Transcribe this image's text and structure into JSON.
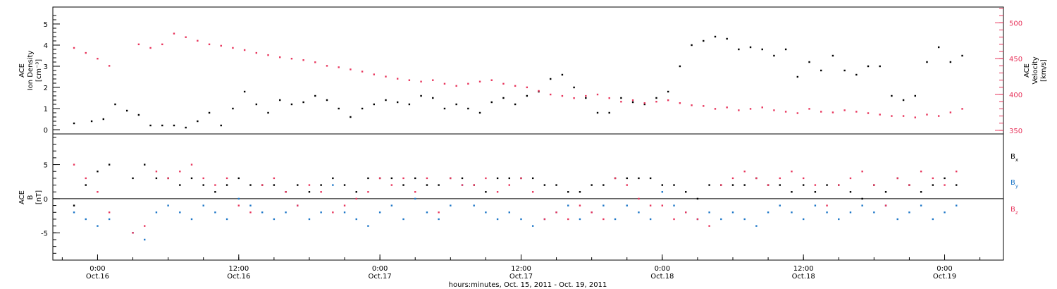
{
  "colors": {
    "black": "#000000",
    "pink": "#e8365d",
    "blue": "#1f78c8",
    "frame": "#000000"
  },
  "chart_data": [
    {
      "type": "scatter",
      "panel": "top",
      "left_axis": {
        "label_lines": [
          "ACE",
          "Ion Density",
          "[cm⁻³]"
        ],
        "ylim": [
          -0.2,
          5.8
        ],
        "ticks": [
          0,
          1,
          2,
          3,
          4,
          5
        ],
        "tick_labels": [
          "0",
          "1",
          "2",
          "3",
          "4",
          "5"
        ]
      },
      "right_axis": {
        "label_lines": [
          "ACE",
          "Velocity",
          "[km/s]"
        ],
        "ylim": [
          345,
          522
        ],
        "ticks": [
          350,
          400,
          450,
          500
        ],
        "tick_labels": [
          "350",
          "400",
          "450",
          "500"
        ]
      },
      "series": [
        {
          "axis": "left",
          "color": "#000000",
          "x": [
            -2.0,
            -0.5,
            0.5,
            1.5,
            2.5,
            3.5,
            4.5,
            5.5,
            6.5,
            7.5,
            8.5,
            9.5,
            10.5,
            11.5,
            12.5,
            13.5,
            14.5,
            15.5,
            16.5,
            17.5,
            18.5,
            19.5,
            20.5,
            21.5,
            22.5,
            23.5,
            24.5,
            25.5,
            26.5,
            27.5,
            28.5,
            29.5,
            30.5,
            31.5,
            32.5,
            33.5,
            34.5,
            35.5,
            36.5,
            37.5,
            38.5,
            39.5,
            40.5,
            41.5,
            42.5,
            43.5,
            44.5,
            45.5,
            46.5,
            47.5,
            48.5,
            49.5,
            50.5,
            51.5,
            52.5,
            53.5,
            54.5,
            55.5,
            56.5,
            57.5,
            58.5,
            59.5,
            60.5,
            61.5,
            62.5,
            63.5,
            64.5,
            65.5,
            66.5,
            67.5,
            68.5,
            69.5,
            70.5,
            71.5,
            72.5,
            73.5
          ],
          "y": [
            0.3,
            0.4,
            0.5,
            1.2,
            0.9,
            0.7,
            0.2,
            0.2,
            0.2,
            0.1,
            0.4,
            0.8,
            0.2,
            1.0,
            1.8,
            1.2,
            0.8,
            1.4,
            1.2,
            1.3,
            1.6,
            1.4,
            1.0,
            0.6,
            1.0,
            1.2,
            1.4,
            1.3,
            1.2,
            1.6,
            1.5,
            1.0,
            1.2,
            1.0,
            0.8,
            1.3,
            1.5,
            1.2,
            1.6,
            1.8,
            2.4,
            2.6,
            2.0,
            1.5,
            0.8,
            0.8,
            1.5,
            1.3,
            1.2,
            1.5,
            1.8,
            3.0,
            4.0,
            4.2,
            4.4,
            4.3,
            3.8,
            3.9,
            3.8,
            3.5,
            3.8,
            2.5,
            3.2,
            2.8,
            3.5,
            2.8,
            2.6,
            3.0,
            3.0,
            1.6,
            1.4,
            1.6,
            3.2,
            3.9,
            3.2,
            3.5
          ]
        },
        {
          "axis": "right",
          "color": "#e8365d",
          "x": [
            -2.0,
            -1.0,
            0.0,
            1.0,
            3.5,
            4.5,
            5.5,
            6.5,
            7.5,
            8.5,
            9.5,
            10.5,
            11.5,
            12.5,
            13.5,
            14.5,
            15.5,
            16.5,
            17.5,
            18.5,
            19.5,
            20.5,
            21.5,
            22.5,
            23.5,
            24.5,
            25.5,
            26.5,
            27.5,
            28.5,
            29.5,
            30.5,
            31.5,
            32.5,
            33.5,
            34.5,
            35.5,
            36.5,
            37.5,
            38.5,
            39.5,
            40.5,
            41.5,
            42.5,
            43.5,
            44.5,
            45.5,
            46.5,
            47.5,
            48.5,
            49.5,
            50.5,
            51.5,
            52.5,
            53.5,
            54.5,
            55.5,
            56.5,
            57.5,
            58.5,
            59.5,
            60.5,
            61.5,
            62.5,
            63.5,
            64.5,
            65.5,
            66.5,
            67.5,
            68.5,
            69.5,
            70.5,
            71.5,
            72.5,
            73.5
          ],
          "y": [
            465,
            458,
            450,
            440,
            470,
            465,
            470,
            485,
            480,
            475,
            470,
            468,
            465,
            462,
            458,
            455,
            452,
            450,
            448,
            445,
            440,
            438,
            435,
            432,
            428,
            425,
            422,
            420,
            418,
            420,
            415,
            412,
            415,
            418,
            420,
            415,
            412,
            410,
            405,
            400,
            398,
            395,
            398,
            400,
            395,
            390,
            392,
            388,
            390,
            392,
            388,
            385,
            384,
            380,
            382,
            378,
            380,
            382,
            378,
            376,
            374,
            380,
            376,
            375,
            378,
            376,
            374,
            372,
            370,
            370,
            368,
            372,
            370,
            375,
            380
          ]
        }
      ]
    },
    {
      "type": "scatter",
      "panel": "bottom",
      "left_axis": {
        "label_lines": [
          "ACE",
          "B",
          "[nT]"
        ],
        "ylim": [
          -9,
          9.5
        ],
        "ticks": [
          -5,
          0,
          5
        ],
        "tick_labels": [
          "-5",
          "0",
          "5"
        ]
      },
      "zero_line": true,
      "legend": {
        "position": "right",
        "entries": [
          "Bx",
          "By",
          "Bz"
        ]
      },
      "x_axis": {
        "xlim": [
          -3.8,
          77.0
        ],
        "tick_positions": [
          0,
          12,
          24,
          36,
          48,
          60,
          72
        ],
        "tick_labels_top": [
          "0:00",
          "12:00",
          "0:00",
          "12:00",
          "0:00",
          "12:00",
          "0:00"
        ],
        "tick_labels_bottom": [
          "Oct.16",
          "Oct.16",
          "Oct.17",
          "Oct.17",
          "Oct.18",
          "Oct.18",
          "Oct.19"
        ],
        "label": "hours:minutes, Oct. 15, 2011 - Oct. 19, 2011"
      },
      "series": [
        {
          "name": "Bx",
          "color": "#000000",
          "x": [
            -2,
            -1,
            0,
            1,
            3,
            4,
            5,
            6,
            7,
            8,
            9,
            10,
            11,
            12,
            13,
            14,
            15,
            16,
            17,
            18,
            19,
            20,
            21,
            22,
            23,
            24,
            25,
            26,
            27,
            28,
            29,
            30,
            31,
            32,
            33,
            34,
            35,
            36,
            37,
            38,
            39,
            40,
            41,
            42,
            43,
            44,
            45,
            46,
            47,
            48,
            49,
            50,
            51,
            52,
            53,
            54,
            55,
            56,
            57,
            58,
            59,
            60,
            61,
            62,
            63,
            64,
            65,
            66,
            67,
            68,
            69,
            70,
            71,
            72,
            73
          ],
          "y": [
            -1,
            2,
            4,
            5,
            3,
            5,
            3,
            3,
            2,
            3,
            2,
            1,
            2,
            3,
            2,
            2,
            2,
            1,
            2,
            1,
            2,
            3,
            2,
            1,
            3,
            3,
            3,
            2,
            3,
            2,
            2,
            3,
            3,
            2,
            1,
            3,
            3,
            3,
            3,
            2,
            2,
            1,
            1,
            2,
            2,
            3,
            3,
            3,
            3,
            2,
            2,
            1,
            0,
            2,
            2,
            2,
            2,
            3,
            2,
            2,
            1,
            2,
            1,
            2,
            2,
            1,
            0,
            2,
            1,
            3,
            2,
            1,
            2,
            3,
            2
          ]
        },
        {
          "name": "By",
          "color": "#1f78c8",
          "x": [
            -2,
            -1,
            0,
            1,
            3,
            4,
            5,
            6,
            7,
            8,
            9,
            10,
            11,
            12,
            13,
            14,
            15,
            16,
            17,
            18,
            19,
            20,
            21,
            22,
            23,
            24,
            25,
            26,
            27,
            28,
            29,
            30,
            31,
            32,
            33,
            34,
            35,
            36,
            37,
            38,
            39,
            40,
            41,
            42,
            43,
            44,
            45,
            46,
            47,
            48,
            49,
            50,
            51,
            52,
            53,
            54,
            55,
            56,
            57,
            58,
            59,
            60,
            61,
            62,
            63,
            64,
            65,
            66,
            67,
            68,
            69,
            70,
            71,
            72,
            73
          ],
          "y": [
            -2,
            -3,
            -4,
            -3,
            -5,
            -6,
            -2,
            -1,
            -2,
            -3,
            -1,
            -2,
            -3,
            0,
            -1,
            -2,
            -3,
            -2,
            -1,
            -3,
            -2,
            2,
            -2,
            -3,
            -4,
            -2,
            -1,
            -3,
            0,
            -2,
            -3,
            -1,
            2,
            -1,
            -2,
            -3,
            -2,
            -3,
            -4,
            -3,
            -2,
            -1,
            -3,
            -2,
            -1,
            -3,
            -1,
            -2,
            -3,
            1,
            -1,
            -2,
            -3,
            -2,
            -3,
            -2,
            -3,
            -4,
            -2,
            -1,
            -2,
            -3,
            -1,
            -2,
            -3,
            -2,
            -1,
            -2,
            -1,
            -3,
            -2,
            -1,
            -3,
            -2,
            -1
          ]
        },
        {
          "name": "Bz",
          "color": "#e8365d",
          "x": [
            -2,
            -1,
            0,
            1,
            3,
            4,
            5,
            6,
            7,
            8,
            9,
            10,
            11,
            12,
            13,
            14,
            15,
            16,
            17,
            18,
            19,
            20,
            21,
            22,
            23,
            24,
            25,
            26,
            27,
            28,
            29,
            30,
            31,
            32,
            33,
            34,
            35,
            36,
            37,
            38,
            39,
            40,
            41,
            42,
            43,
            44,
            45,
            46,
            47,
            48,
            49,
            50,
            51,
            52,
            53,
            54,
            55,
            56,
            57,
            58,
            59,
            60,
            61,
            62,
            63,
            64,
            65,
            66,
            67,
            68,
            69,
            70,
            71,
            72,
            73
          ],
          "y": [
            5,
            3,
            1,
            -2,
            -5,
            -4,
            4,
            3,
            4,
            5,
            3,
            2,
            3,
            -1,
            -2,
            2,
            3,
            1,
            -1,
            2,
            1,
            -2,
            -1,
            0,
            1,
            3,
            2,
            3,
            1,
            3,
            -2,
            3,
            2,
            2,
            3,
            1,
            2,
            3,
            1,
            -3,
            -2,
            -3,
            -1,
            -2,
            -3,
            3,
            2,
            0,
            -1,
            -1,
            -3,
            -2,
            -3,
            -4,
            2,
            3,
            4,
            3,
            2,
            3,
            4,
            3,
            2,
            -1,
            2,
            3,
            4,
            2,
            -1,
            3,
            2,
            4,
            3,
            2,
            4
          ]
        }
      ]
    }
  ]
}
